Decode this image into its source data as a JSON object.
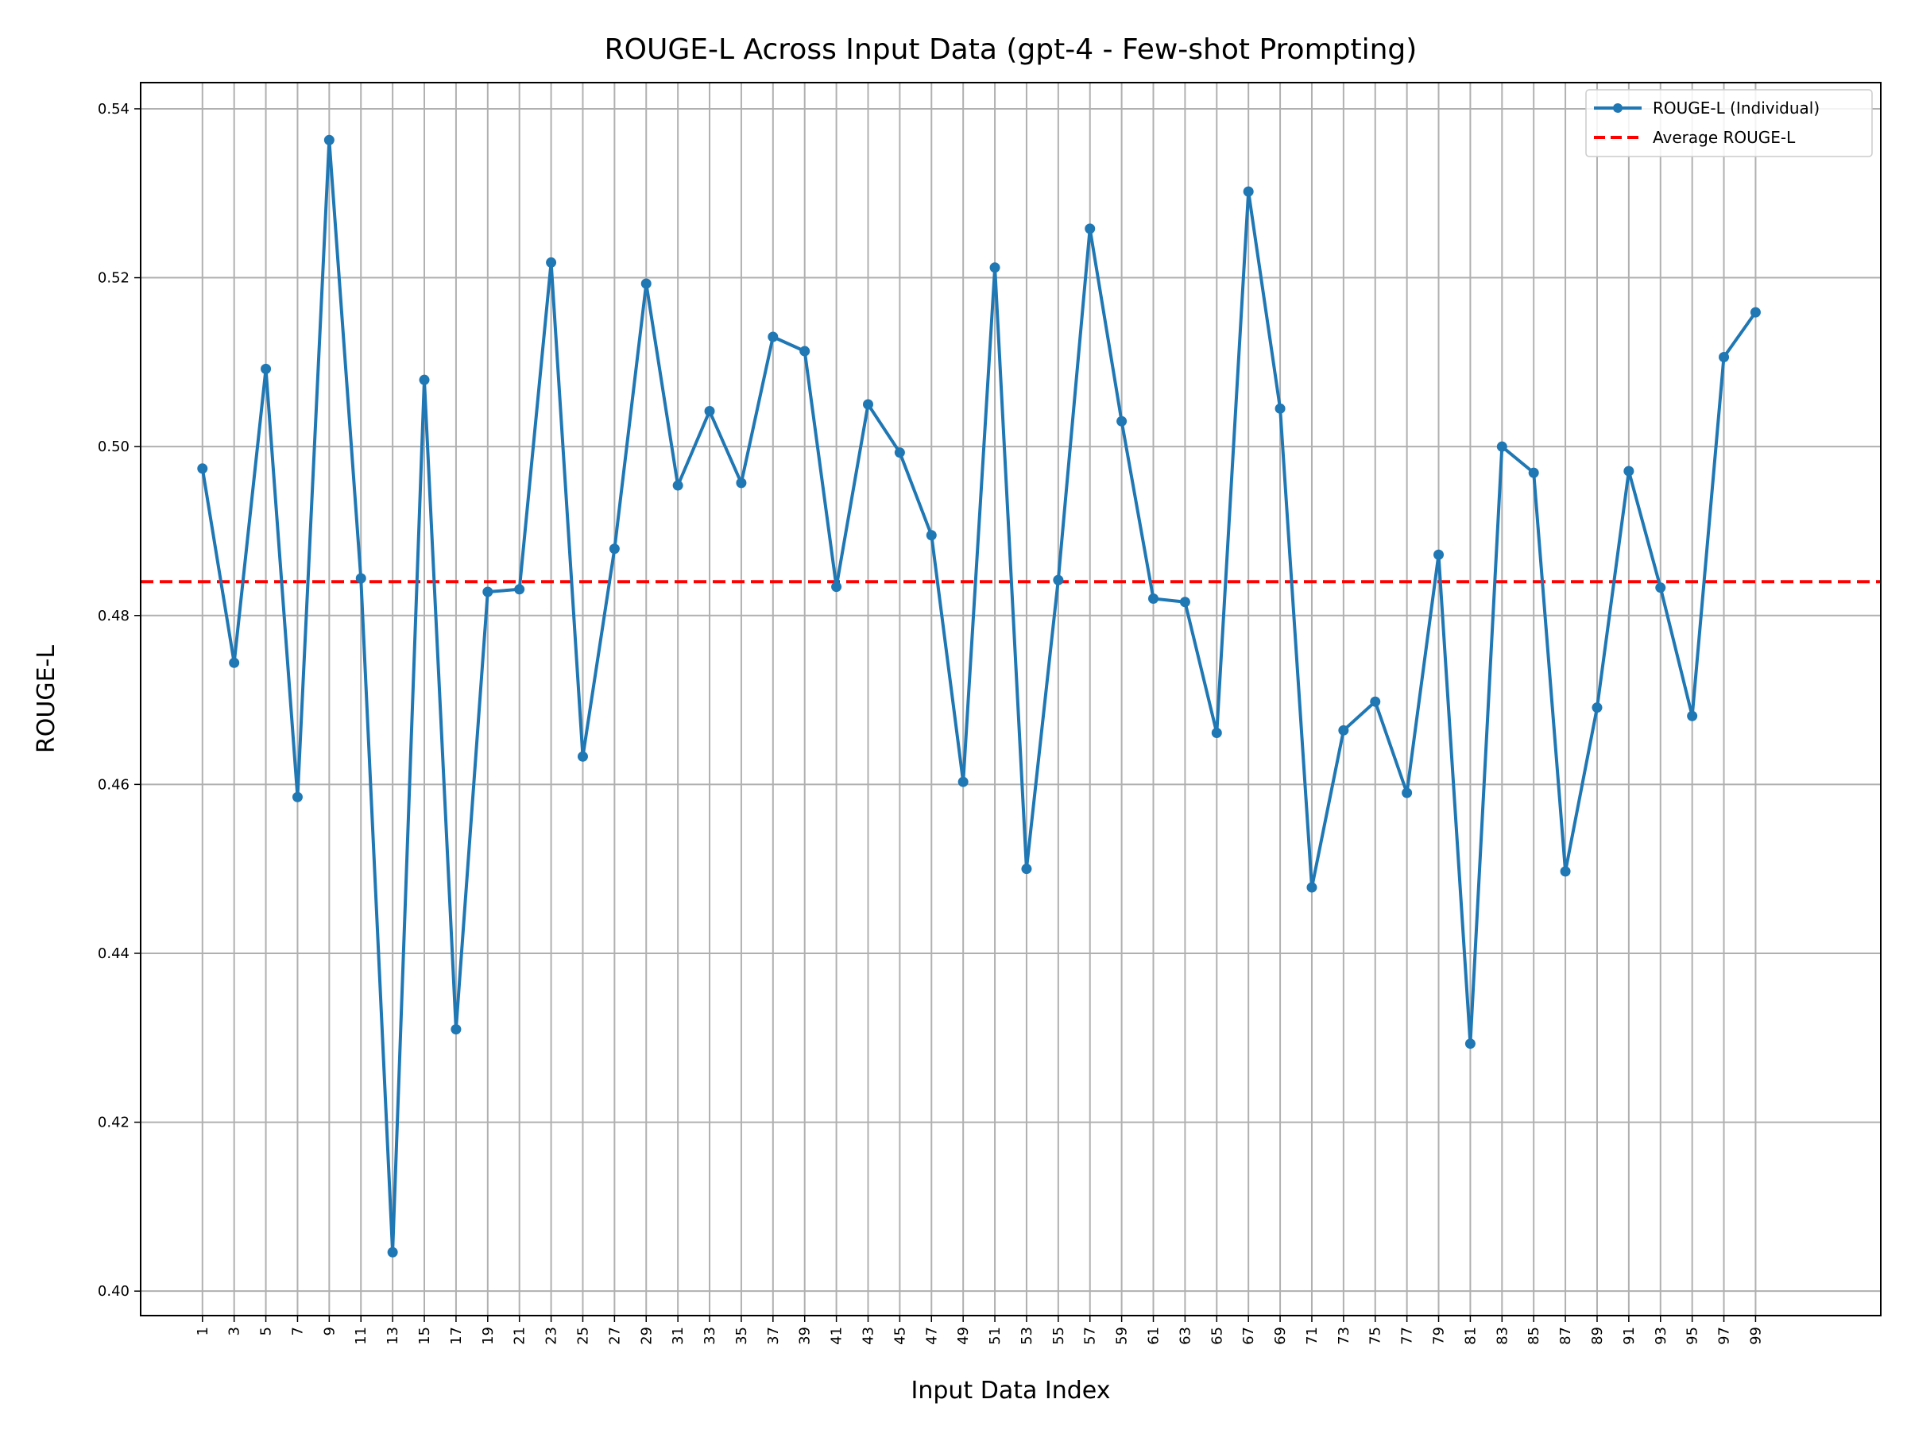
{
  "chart_data": {
    "type": "line",
    "title": "ROUGE-L Across Input Data (gpt-4 - Few-shot Prompting)",
    "xlabel": "Input Data Index",
    "ylabel": "ROUGE-L",
    "x": [
      1,
      3,
      5,
      7,
      9,
      11,
      13,
      15,
      17,
      19,
      21,
      23,
      25,
      27,
      29,
      31,
      33,
      35,
      37,
      39,
      41,
      43,
      45,
      47,
      49,
      51,
      53,
      55,
      57,
      59,
      61,
      63,
      65,
      67,
      69,
      71,
      73,
      75,
      77,
      79,
      81,
      83,
      85,
      87,
      89,
      91,
      93,
      95,
      97,
      99
    ],
    "xticks": [
      "1",
      "3",
      "5",
      "7",
      "9",
      "11",
      "13",
      "15",
      "17",
      "19",
      "21",
      "23",
      "25",
      "27",
      "29",
      "31",
      "33",
      "35",
      "37",
      "39",
      "41",
      "43",
      "45",
      "47",
      "49",
      "51",
      "53",
      "55",
      "57",
      "59",
      "61",
      "63",
      "65",
      "67",
      "69",
      "71",
      "73",
      "75",
      "77",
      "79",
      "81",
      "83",
      "85",
      "87",
      "89",
      "91",
      "93",
      "95",
      "97",
      "99"
    ],
    "yticks": [
      "0.40",
      "0.42",
      "0.44",
      "0.46",
      "0.48",
      "0.50",
      "0.52",
      "0.54"
    ],
    "ytick_values": [
      0.4,
      0.42,
      0.44,
      0.46,
      0.48,
      0.5,
      0.52,
      0.54
    ],
    "xlim": [
      -2.9,
      106.9
    ],
    "ylim": [
      0.3971,
      0.5431
    ],
    "grid": true,
    "legend_position": "top-right",
    "series": [
      {
        "name": "ROUGE-L (Individual)",
        "color": "#1f77b4",
        "style": "solid-with-markers",
        "values": [
          0.4974,
          0.4744,
          0.5092,
          0.4585,
          0.5363,
          0.4844,
          0.4046,
          0.5079,
          0.431,
          0.4828,
          0.4831,
          0.5218,
          0.4633,
          0.4879,
          0.5193,
          0.4954,
          0.5042,
          0.4957,
          0.513,
          0.5113,
          0.4834,
          0.505,
          0.4993,
          0.4895,
          0.4603,
          0.5212,
          0.45,
          0.4842,
          0.5258,
          0.503,
          0.482,
          0.4816,
          0.4661,
          0.5302,
          0.5045,
          0.4478,
          0.4664,
          0.4698,
          0.459,
          0.4872,
          0.4293,
          0.5,
          0.4969,
          0.4497,
          0.4691,
          0.4971,
          0.4833,
          0.4681,
          0.5106,
          0.5159
        ]
      },
      {
        "name": "Average ROUGE-L",
        "color": "#ff0000",
        "style": "dashed",
        "value": 0.484
      }
    ]
  }
}
